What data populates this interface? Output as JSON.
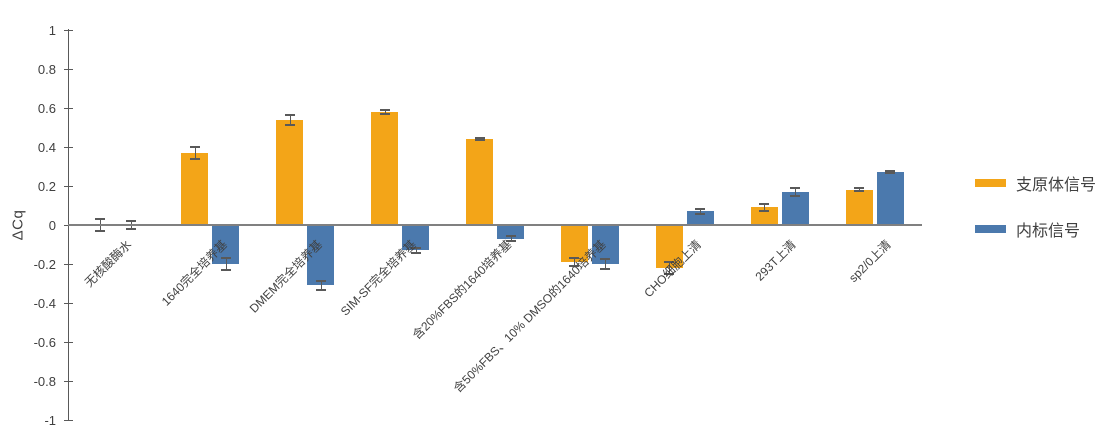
{
  "chart_data": {
    "type": "bar",
    "title": "",
    "ylabel": "ΔCq",
    "ylim": [
      -1,
      1
    ],
    "ytick_step": 0.2,
    "grid": false,
    "legend_position": "right",
    "categories": [
      "无核酸酶水",
      "1640完全培养基",
      "DMEM完全培养基",
      "SIM-SF完全培养基",
      "含20%FBS的1640培养基",
      "含50%FBS、10% DMSO的1640培养基",
      "CHO细胞上清",
      "293T上清",
      "sp2/0上清"
    ],
    "series": [
      {
        "name": "支原体信号",
        "key": "mycoplasma-signal",
        "color": "#F3A518",
        "values": [
          0,
          0.37,
          0.54,
          0.58,
          0.44,
          -0.19,
          -0.22,
          0.09,
          0.18
        ],
        "errors": [
          0.03,
          0.03,
          0.025,
          0.01,
          0.005,
          0.02,
          0.03,
          0.018,
          0.008
        ]
      },
      {
        "name": "内标信号",
        "key": "internal-control-signal",
        "color": "#4B79AD",
        "values": [
          0,
          -0.2,
          -0.31,
          -0.13,
          -0.07,
          -0.2,
          0.07,
          0.17,
          0.27
        ],
        "errors": [
          0.02,
          0.03,
          0.025,
          0.012,
          0.012,
          0.025,
          0.012,
          0.02,
          0.005
        ]
      }
    ],
    "colors": {
      "axis": "#595959",
      "zero_line": "#808080",
      "error_bar": "#595959",
      "text": "#404040"
    }
  }
}
